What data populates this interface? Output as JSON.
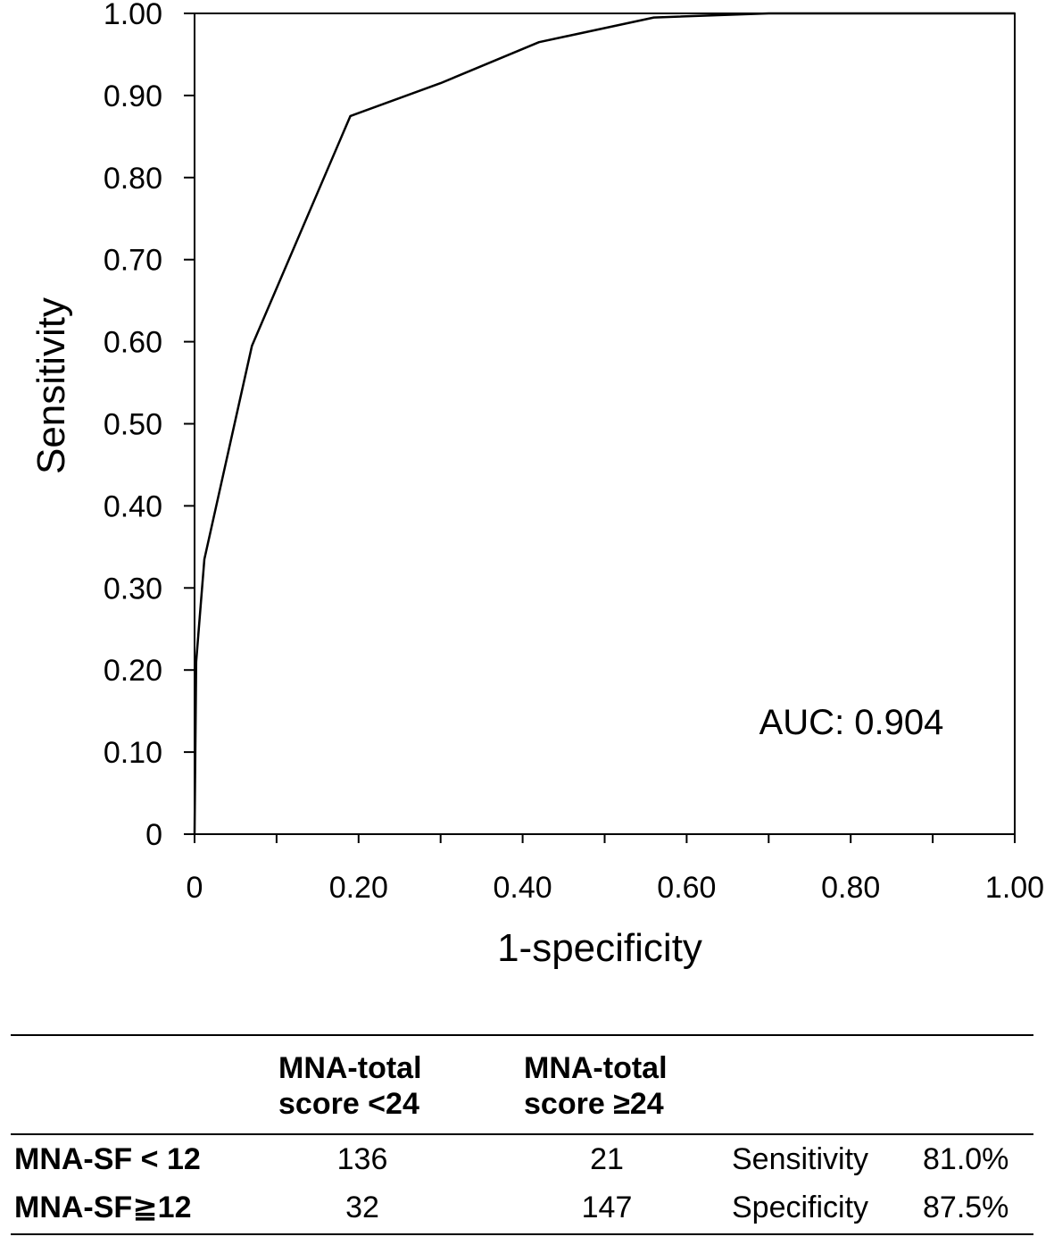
{
  "chart_data": {
    "type": "line",
    "title": "",
    "xlabel": "1-specificity",
    "ylabel": "Sensitivity",
    "xlim": [
      0,
      1.0
    ],
    "ylim": [
      0,
      1.0
    ],
    "x_ticks": [
      "0",
      "0.20",
      "0.40",
      "0.60",
      "0.80",
      "1.00"
    ],
    "y_ticks": [
      "0",
      "0.10",
      "0.20",
      "0.30",
      "0.40",
      "0.50",
      "0.60",
      "0.70",
      "0.80",
      "0.90",
      "1.00"
    ],
    "grid": false,
    "annotation": "AUC: 0.904",
    "series": [
      {
        "x": [
          0.0,
          0.002,
          0.012,
          0.07,
          0.19,
          0.3,
          0.42,
          0.56,
          0.7,
          0.75,
          1.0
        ],
        "y": [
          0.0,
          0.21,
          0.335,
          0.595,
          0.875,
          0.915,
          0.965,
          0.995,
          1.0,
          1.0,
          1.0
        ]
      }
    ]
  },
  "table": {
    "col_headers": [
      [
        "MNA-total",
        "score <24"
      ],
      [
        "MNA-total",
        "score ≥24"
      ]
    ],
    "rows": [
      {
        "label": "MNA-SF < 12",
        "v1": "136",
        "v2": "21",
        "metric": "Sensitivity",
        "pct": "81.0%"
      },
      {
        "label": "MNA-SF≧12",
        "v1": "32",
        "v2": "147",
        "metric": "Specificity",
        "pct": "87.5%"
      }
    ]
  }
}
